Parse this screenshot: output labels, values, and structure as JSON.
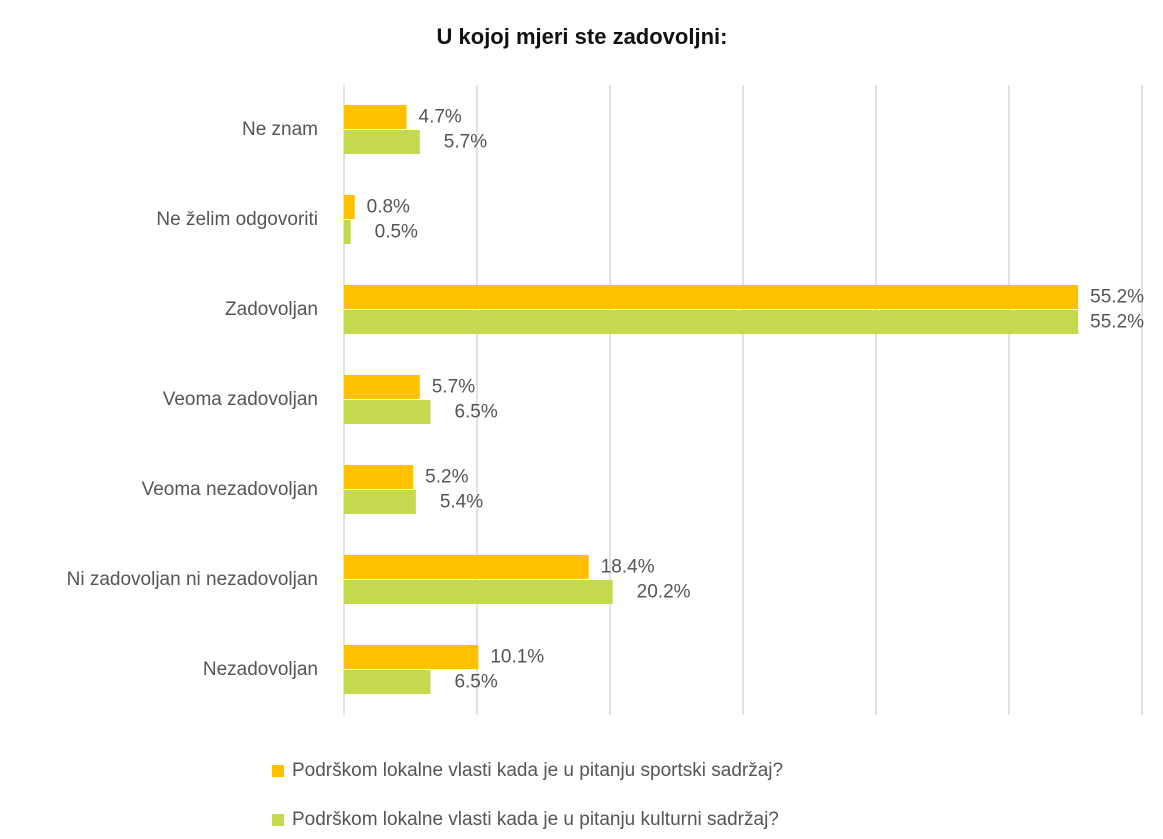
{
  "chart_data": {
    "type": "bar",
    "orientation": "horizontal",
    "title": "U kojoj mjeri ste zadovoljni:",
    "categories": [
      "Ne znam",
      "Ne želim odgovoriti",
      "Zadovoljan",
      "Veoma zadovoljan",
      "Veoma nezadovoljan",
      "Ni zadovoljan ni nezadovoljan",
      "Nezadovoljan"
    ],
    "series": [
      {
        "name": "Podrškom lokalne vlasti kada je u pitanju sportski sadržaj?",
        "color": "#ffc000",
        "values": [
          4.7,
          0.8,
          55.2,
          5.7,
          5.2,
          18.4,
          10.1
        ],
        "value_labels": [
          "4.7%",
          "0.8%",
          "55.2%",
          "5.7%",
          "5.2%",
          "18.4%",
          "10.1%"
        ]
      },
      {
        "name": "Podrškom lokalne vlasti kada je u pitanju kulturni sadržaj?",
        "color": "#c6d94e",
        "values": [
          5.7,
          0.5,
          55.2,
          6.5,
          5.4,
          20.2,
          6.5
        ],
        "value_labels": [
          "5.7%",
          "0.5%",
          "55.2%",
          "6.5%",
          "5.4%",
          "20.2%",
          "6.5%"
        ]
      }
    ],
    "xlim": [
      0,
      60
    ],
    "xticks": [
      0,
      10,
      20,
      30,
      40,
      50,
      60
    ],
    "grid": true,
    "legend": "bottom"
  }
}
